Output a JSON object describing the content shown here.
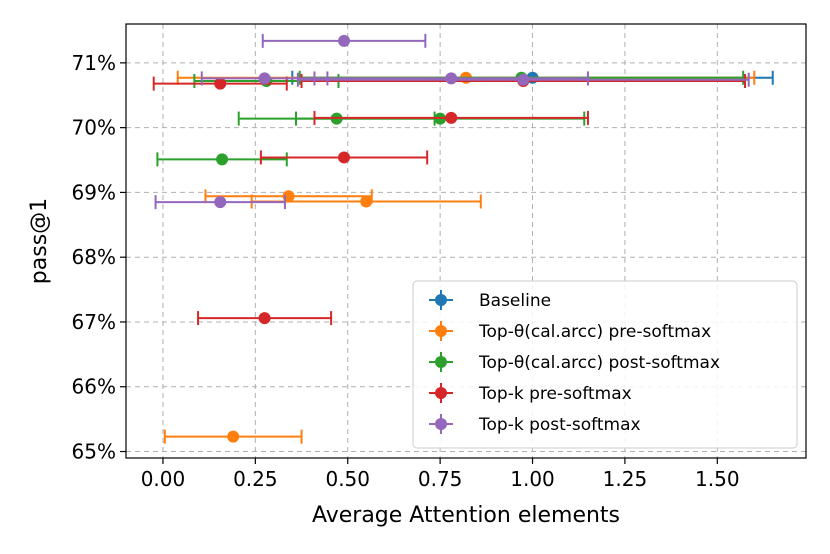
{
  "chart_data": {
    "type": "scatter",
    "title": "",
    "xlabel": "Average Attention elements",
    "ylabel": "pass@1",
    "xlim": [
      -0.1,
      1.74
    ],
    "ylim": [
      64.9,
      71.6
    ],
    "xticks": [
      0.0,
      0.25,
      0.5,
      0.75,
      1.0,
      1.25,
      1.5
    ],
    "xtick_labels": [
      "0.00",
      "0.25",
      "0.50",
      "0.75",
      "1.00",
      "1.25",
      "1.50"
    ],
    "yticks": [
      65,
      66,
      67,
      68,
      69,
      70,
      71
    ],
    "ytick_labels": [
      "65%",
      "66%",
      "67%",
      "68%",
      "69%",
      "70%",
      "71%"
    ],
    "grid": true,
    "legend_position": "lower-right",
    "series": [
      {
        "name": "Baseline",
        "color": "#1f77b4",
        "points": [
          {
            "x": 1.0,
            "y": 70.77,
            "xerr": 0.65
          }
        ]
      },
      {
        "name": "Top-θ(cal.arcc) pre-softmax",
        "color": "#ff7f0e",
        "points": [
          {
            "x": 0.82,
            "y": 70.77,
            "xerr": 0.78
          },
          {
            "x": 0.34,
            "y": 68.94,
            "xerr": 0.225
          },
          {
            "x": 0.55,
            "y": 68.86,
            "xerr": 0.31
          },
          {
            "x": 0.19,
            "y": 65.23,
            "xerr": 0.185
          }
        ]
      },
      {
        "name": "Top-θ(cal.arcc) post-softmax",
        "color": "#2ca02c",
        "points": [
          {
            "x": 0.97,
            "y": 70.77,
            "xerr": 0.6
          },
          {
            "x": 0.28,
            "y": 70.72,
            "xerr": 0.195
          },
          {
            "x": 0.47,
            "y": 70.14,
            "xerr": 0.265
          },
          {
            "x": 0.75,
            "y": 70.14,
            "xerr": 0.39
          },
          {
            "x": 0.16,
            "y": 69.51,
            "xerr": 0.175
          }
        ]
      },
      {
        "name": "Top-k pre-softmax",
        "color": "#d62728",
        "points": [
          {
            "x": 0.975,
            "y": 70.72,
            "xerr": 0.6
          },
          {
            "x": 0.155,
            "y": 70.68,
            "xerr": 0.18
          },
          {
            "x": 0.78,
            "y": 70.15,
            "xerr": 0.37
          },
          {
            "x": 0.49,
            "y": 69.54,
            "xerr": 0.225
          },
          {
            "x": 0.275,
            "y": 67.06,
            "xerr": 0.18
          }
        ]
      },
      {
        "name": "Top-k post-softmax",
        "color": "#9467bd",
        "points": [
          {
            "x": 0.49,
            "y": 71.34,
            "xerr": 0.22
          },
          {
            "x": 0.275,
            "y": 70.76,
            "xerr": 0.17
          },
          {
            "x": 0.78,
            "y": 70.76,
            "xerr": 0.37
          },
          {
            "x": 0.975,
            "y": 70.74,
            "xerr": 0.61
          },
          {
            "x": 0.155,
            "y": 68.85,
            "xerr": 0.175
          }
        ]
      }
    ]
  }
}
